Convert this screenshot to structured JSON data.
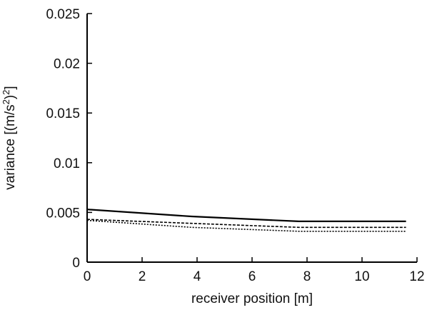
{
  "chart_data": {
    "type": "line",
    "title": "",
    "xlabel": "receiver position [m]",
    "ylabel_parts": {
      "prefix": "variance [(m/s",
      "sup1": "2",
      "middle": ")",
      "sup2": "2",
      "suffix": "]"
    },
    "xlim": [
      0,
      12
    ],
    "ylim": [
      0,
      0.025
    ],
    "xticks": [
      0,
      2,
      4,
      6,
      8,
      10,
      12
    ],
    "xtick_labels": [
      "0",
      "2",
      "4",
      "6",
      "8",
      "10",
      "12"
    ],
    "yticks": [
      0,
      0.005,
      0.01,
      0.015,
      0.02,
      0.025
    ],
    "ytick_labels": [
      "0",
      "0.005",
      "0.01",
      "0.015",
      "0.02",
      "0.025"
    ],
    "grid": false,
    "series": [
      {
        "style": "solid",
        "color": "#000000",
        "x": [
          0,
          3.8,
          7.7,
          11.6
        ],
        "y": [
          0.0053,
          0.0046,
          0.0041,
          0.0041
        ]
      },
      {
        "style": "dashed",
        "color": "#000000",
        "x": [
          0,
          3.8,
          7.7,
          11.6
        ],
        "y": [
          0.0043,
          0.0039,
          0.0035,
          0.0035
        ]
      },
      {
        "style": "dotted",
        "color": "#000000",
        "x": [
          0,
          3.8,
          7.7,
          11.6
        ],
        "y": [
          0.0042,
          0.0035,
          0.0031,
          0.0031
        ]
      }
    ]
  }
}
